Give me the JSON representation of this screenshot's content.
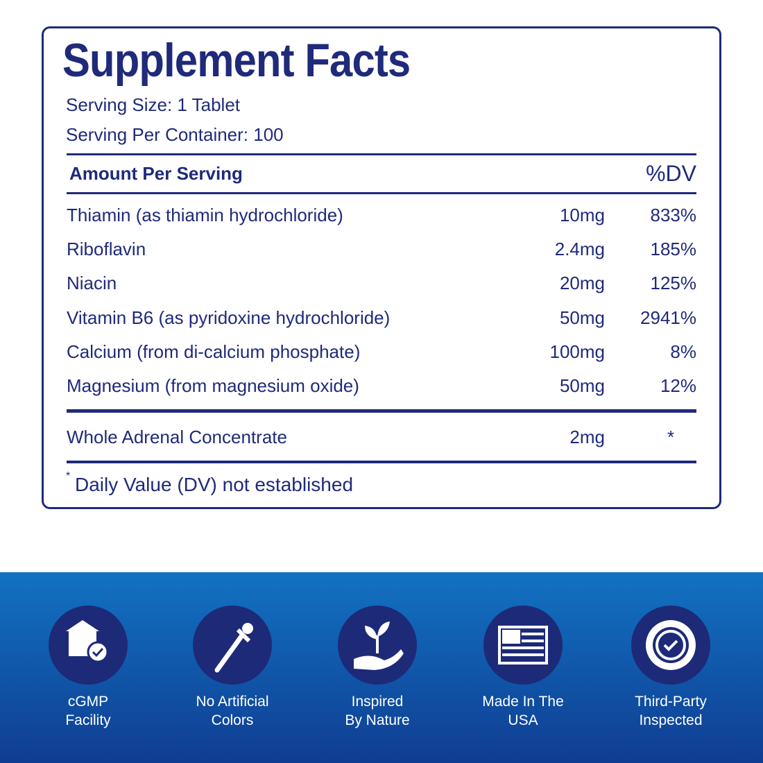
{
  "header": {
    "title": "Supplement Facts",
    "serving_size": "Serving Size: 1 Tablet",
    "servings_per_container": "Serving Per Container: 100"
  },
  "table": {
    "header": [
      "Amount Per Serving",
      "%DV"
    ],
    "rows": [
      [
        "Thiamin (as thiamin hydrochloride)",
        "10mg",
        "833%"
      ],
      [
        "Riboflavin",
        "2.4mg",
        "185%"
      ],
      [
        "Niacin",
        "20mg",
        "125%"
      ],
      [
        "Vitamin B6 (as pyridoxine hydrochloride)",
        "50mg",
        "2941%"
      ],
      [
        "Calcium (from di-calcium phosphate)",
        "100mg",
        "8%"
      ],
      [
        "Magnesium (from magnesium oxide)",
        "50mg",
        "12%"
      ]
    ],
    "extra_rows": [
      [
        "Whole Adrenal Concentrate",
        "2mg",
        "*"
      ]
    ],
    "footnote": {
      "mark": "*",
      "text": "Daily Value (DV) not established"
    }
  },
  "badges": [
    {
      "lines": [
        "cGMP",
        "Facility"
      ]
    },
    {
      "lines": [
        "No Artificial",
        "Colors"
      ]
    },
    {
      "lines": [
        "Inspired",
        "By Nature"
      ]
    },
    {
      "lines": [
        "Made In The",
        "USA"
      ]
    },
    {
      "lines": [
        "Third-Party",
        "Inspected"
      ]
    }
  ]
}
